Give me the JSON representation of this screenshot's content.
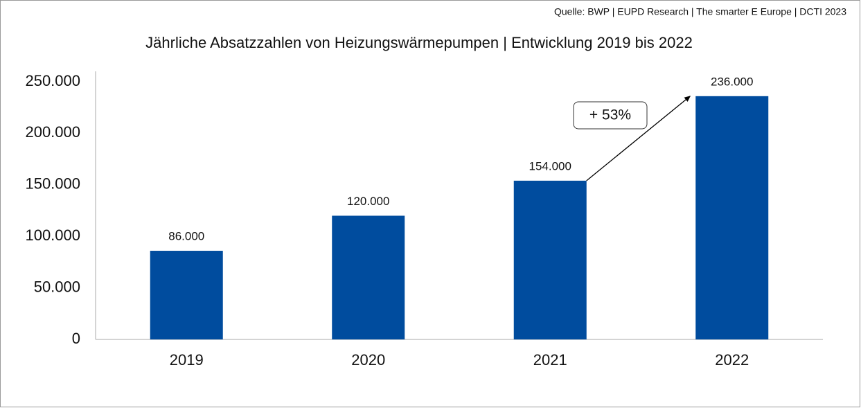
{
  "chart_data": {
    "type": "bar",
    "source": "Quelle: BWP | EUPD Research | The smarter E Europe | DCTI 2023",
    "title": "Jährliche Absatzzahlen von Heizungswärmepumpen | Entwicklung 2019 bis 2022",
    "categories": [
      "2019",
      "2020",
      "2021",
      "2022"
    ],
    "values": [
      86000,
      120000,
      154000,
      236000
    ],
    "value_labels": [
      "86.000",
      "120.000",
      "154.000",
      "236.000"
    ],
    "color": "#004c9e",
    "annotation": "+ 53%",
    "ylim": [
      0,
      250000
    ],
    "yticks": [
      0,
      {
        "value": 50000,
        "label": "50.000"
      },
      {
        "value": 100000,
        "label": "100.000"
      },
      {
        "value": 150000,
        "label": "150.000"
      },
      {
        "value": 200000,
        "label": "200.000"
      },
      {
        "value": 250000,
        "label": "250.000"
      }
    ],
    "grid": false
  }
}
